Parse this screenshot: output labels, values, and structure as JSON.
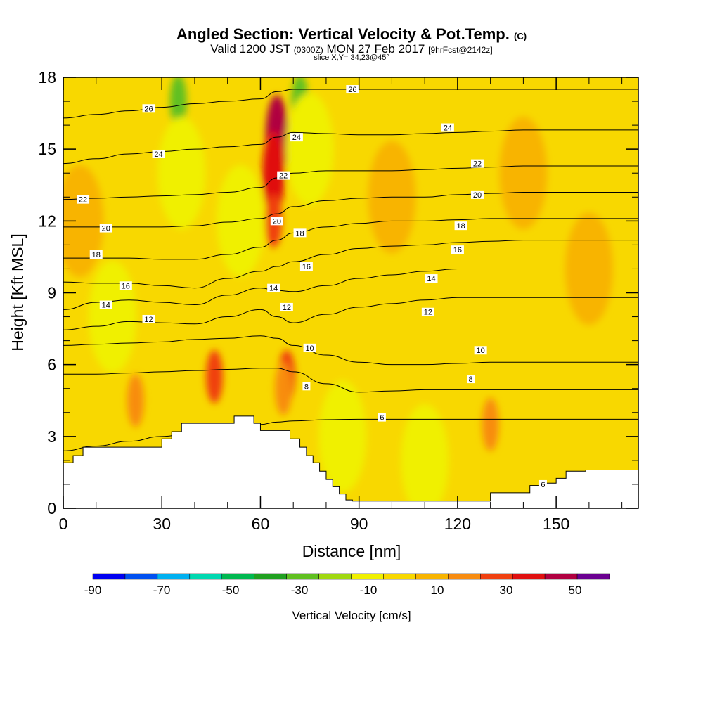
{
  "header": {
    "title": "Angled Section: Vertical Velocity & Pot.Temp.",
    "title_unit": "(C)",
    "valid_prefix": "Valid 1200 JST",
    "valid_utc": "(0300Z)",
    "valid_date": "MON 27 Feb 2017",
    "forecast": "[9hrFcst@2142z]",
    "slice": "slice X,Y= 34,23@45°"
  },
  "chart_data": {
    "type": "heatmap",
    "xlabel": "Distance [nm]",
    "ylabel": "Height [Kft MSL]",
    "xlim": [
      0,
      175
    ],
    "ylim": [
      0,
      18
    ],
    "x_ticks": [
      0,
      30,
      60,
      90,
      120,
      150
    ],
    "y_ticks": [
      0,
      3,
      6,
      9,
      12,
      15,
      18
    ],
    "colorbar": {
      "label": "Vertical Velocity [cm/s]",
      "ticks": [
        -90,
        -70,
        -50,
        -30,
        -10,
        10,
        30,
        50
      ],
      "bounds": [
        -90,
        -80,
        -70,
        -60,
        -50,
        -40,
        -30,
        -20,
        -10,
        0,
        10,
        20,
        30,
        40,
        50,
        60
      ],
      "colors": [
        "#0000f0",
        "#0050f0",
        "#00b0f0",
        "#00d8b0",
        "#00b850",
        "#20a020",
        "#60c020",
        "#a0d810",
        "#f0f000",
        "#f8d800",
        "#f8b400",
        "#f88c10",
        "#f04010",
        "#e01010",
        "#b00040",
        "#6a0090"
      ]
    },
    "terrain_profile": {
      "x": [
        0,
        3,
        3,
        6,
        6,
        9,
        9,
        30,
        30,
        33,
        33,
        36,
        36,
        52,
        52,
        58,
        58,
        60,
        60,
        69,
        69,
        72,
        72,
        74,
        74,
        76,
        76,
        78,
        78,
        80,
        80,
        82,
        82,
        84,
        84,
        86,
        86,
        88,
        88,
        92,
        92,
        130,
        130,
        142,
        142,
        145,
        145,
        150,
        150,
        153,
        153,
        159,
        159,
        175
      ],
      "y": [
        1.9,
        1.9,
        2.2,
        2.2,
        2.55,
        2.55,
        2.55,
        2.55,
        2.9,
        2.9,
        3.2,
        3.2,
        3.55,
        3.55,
        3.85,
        3.85,
        3.55,
        3.55,
        3.25,
        3.25,
        2.9,
        2.9,
        2.55,
        2.55,
        2.2,
        2.2,
        1.9,
        1.9,
        1.55,
        1.55,
        1.2,
        1.2,
        0.9,
        0.9,
        0.6,
        0.6,
        0.35,
        0.35,
        0.3,
        0.3,
        0.3,
        0.3,
        0.65,
        0.65,
        0.95,
        0.95,
        1.05,
        1.05,
        1.25,
        1.25,
        1.55,
        1.55,
        1.6,
        1.6
      ]
    },
    "velocity_features": [
      {
        "x": 65,
        "y": 15.5,
        "value": 50
      },
      {
        "x": 64,
        "y": 14,
        "value": 40
      },
      {
        "x": 64,
        "y": 12,
        "value": 30
      },
      {
        "x": 68,
        "y": 5.5,
        "value": 30
      },
      {
        "x": 46,
        "y": 5.5,
        "value": 30
      },
      {
        "x": 67,
        "y": 5,
        "value": 20
      },
      {
        "x": 22,
        "y": 4.5,
        "value": 20
      },
      {
        "x": 130,
        "y": 3.5,
        "value": 20
      },
      {
        "x": 35,
        "y": 17,
        "value": -30
      },
      {
        "x": 72,
        "y": 17,
        "value": -30
      },
      {
        "x": 36,
        "y": 14,
        "value": -10
      },
      {
        "x": 54,
        "y": 12,
        "value": -10
      },
      {
        "x": 75,
        "y": 15,
        "value": -10
      },
      {
        "x": 85,
        "y": 3,
        "value": -10
      },
      {
        "x": 110,
        "y": 2,
        "value": -10
      },
      {
        "x": 15,
        "y": 8,
        "value": -10
      },
      {
        "x": 5,
        "y": 12,
        "value": 10
      },
      {
        "x": 100,
        "y": 13,
        "value": 10
      },
      {
        "x": 160,
        "y": 10,
        "value": 10
      },
      {
        "x": 140,
        "y": 14,
        "value": 10
      }
    ],
    "isentropes": [
      {
        "value": 6,
        "y": [
          2.4,
          2.6,
          2.8,
          3.0,
          3.2,
          3.4,
          3.5,
          3.6,
          3.65,
          3.7,
          3.72,
          3.72,
          3.72,
          3.72,
          3.72,
          3.72,
          3.72,
          3.72
        ]
      },
      {
        "value": 8,
        "y": [
          5.6,
          5.6,
          5.65,
          5.7,
          5.75,
          5.8,
          5.85,
          5.85,
          5.7,
          5.2,
          4.85,
          4.9,
          4.95,
          4.95,
          4.95,
          4.95,
          4.95,
          4.95
        ]
      },
      {
        "value": 10,
        "y": [
          6.8,
          6.85,
          6.9,
          6.95,
          7.05,
          7.1,
          7.2,
          7.1,
          6.8,
          6.4,
          6.1,
          6.0,
          6.0,
          6.05,
          6.1,
          6.1,
          6.1,
          6.1
        ]
      },
      {
        "value": 12,
        "y": [
          7.45,
          7.6,
          7.8,
          7.75,
          7.7,
          8.0,
          8.3,
          8.0,
          7.75,
          8.1,
          8.4,
          8.55,
          8.7,
          8.8,
          8.8,
          8.8,
          8.8,
          8.8
        ]
      },
      {
        "value": 14,
        "y": [
          8.3,
          8.6,
          8.7,
          8.6,
          8.5,
          8.9,
          9.2,
          9.1,
          9.05,
          9.3,
          9.6,
          9.75,
          9.9,
          10.0,
          10.0,
          10.0,
          10.0,
          10.0
        ]
      },
      {
        "value": 16,
        "y": [
          9.45,
          9.4,
          9.4,
          9.3,
          9.2,
          9.6,
          9.9,
          10.1,
          10.3,
          10.6,
          10.85,
          10.95,
          11.0,
          11.1,
          11.15,
          11.2,
          11.2,
          11.2
        ]
      },
      {
        "value": 18,
        "y": [
          10.45,
          10.45,
          10.45,
          10.4,
          10.4,
          10.6,
          10.9,
          11.2,
          11.5,
          11.75,
          11.9,
          12.0,
          12.0,
          12.05,
          12.1,
          12.1,
          12.1,
          12.1
        ]
      },
      {
        "value": 20,
        "y": [
          11.75,
          11.75,
          11.75,
          11.75,
          11.8,
          11.95,
          12.1,
          12.3,
          12.6,
          12.85,
          12.95,
          13.0,
          13.0,
          13.1,
          13.15,
          13.2,
          13.2,
          13.2
        ]
      },
      {
        "value": 22,
        "y": [
          12.9,
          12.95,
          13.0,
          13.05,
          13.1,
          13.2,
          13.4,
          13.8,
          14.0,
          14.1,
          14.1,
          14.1,
          14.15,
          14.2,
          14.25,
          14.3,
          14.3,
          14.3
        ]
      },
      {
        "value": 24,
        "y": [
          14.4,
          14.6,
          14.8,
          14.9,
          15.0,
          15.1,
          15.2,
          15.5,
          15.7,
          15.65,
          15.6,
          15.6,
          15.65,
          15.7,
          15.75,
          15.8,
          15.8,
          15.8
        ]
      },
      {
        "value": 26,
        "y": [
          16.3,
          16.45,
          16.6,
          16.75,
          16.9,
          17.0,
          17.1,
          17.4,
          17.5,
          17.5,
          17.5,
          17.5,
          17.5,
          17.5,
          17.5,
          17.5,
          17.5,
          17.5
        ]
      }
    ],
    "isentrope_x": [
      0,
      10,
      20,
      30,
      40,
      50,
      60,
      65,
      70,
      80,
      90,
      100,
      110,
      120,
      130,
      140,
      150,
      175
    ],
    "isentrope_labels": [
      {
        "text": "6",
        "x": 97,
        "y": 3.8
      },
      {
        "text": "6",
        "x": 146,
        "y": 1.0
      },
      {
        "text": "8",
        "x": 74,
        "y": 5.1
      },
      {
        "text": "8",
        "x": 124,
        "y": 5.4
      },
      {
        "text": "10",
        "x": 75,
        "y": 6.7
      },
      {
        "text": "10",
        "x": 127,
        "y": 6.6
      },
      {
        "text": "12",
        "x": 26,
        "y": 7.9
      },
      {
        "text": "12",
        "x": 68,
        "y": 8.4
      },
      {
        "text": "12",
        "x": 111,
        "y": 8.2
      },
      {
        "text": "14",
        "x": 13,
        "y": 8.5
      },
      {
        "text": "14",
        "x": 64,
        "y": 9.2
      },
      {
        "text": "14",
        "x": 112,
        "y": 9.6
      },
      {
        "text": "16",
        "x": 19,
        "y": 9.3
      },
      {
        "text": "16",
        "x": 74,
        "y": 10.1
      },
      {
        "text": "16",
        "x": 120,
        "y": 10.8
      },
      {
        "text": "18",
        "x": 10,
        "y": 10.6
      },
      {
        "text": "18",
        "x": 72,
        "y": 11.5
      },
      {
        "text": "18",
        "x": 121,
        "y": 11.8
      },
      {
        "text": "20",
        "x": 13,
        "y": 11.7
      },
      {
        "text": "20",
        "x": 65,
        "y": 12.0
      },
      {
        "text": "20",
        "x": 126,
        "y": 13.1
      },
      {
        "text": "22",
        "x": 6,
        "y": 12.9
      },
      {
        "text": "22",
        "x": 67,
        "y": 13.9
      },
      {
        "text": "22",
        "x": 126,
        "y": 14.4
      },
      {
        "text": "24",
        "x": 29,
        "y": 14.8
      },
      {
        "text": "24",
        "x": 71,
        "y": 15.5
      },
      {
        "text": "24",
        "x": 117,
        "y": 15.9
      },
      {
        "text": "26",
        "x": 26,
        "y": 16.7
      },
      {
        "text": "26",
        "x": 88,
        "y": 17.5
      }
    ]
  }
}
